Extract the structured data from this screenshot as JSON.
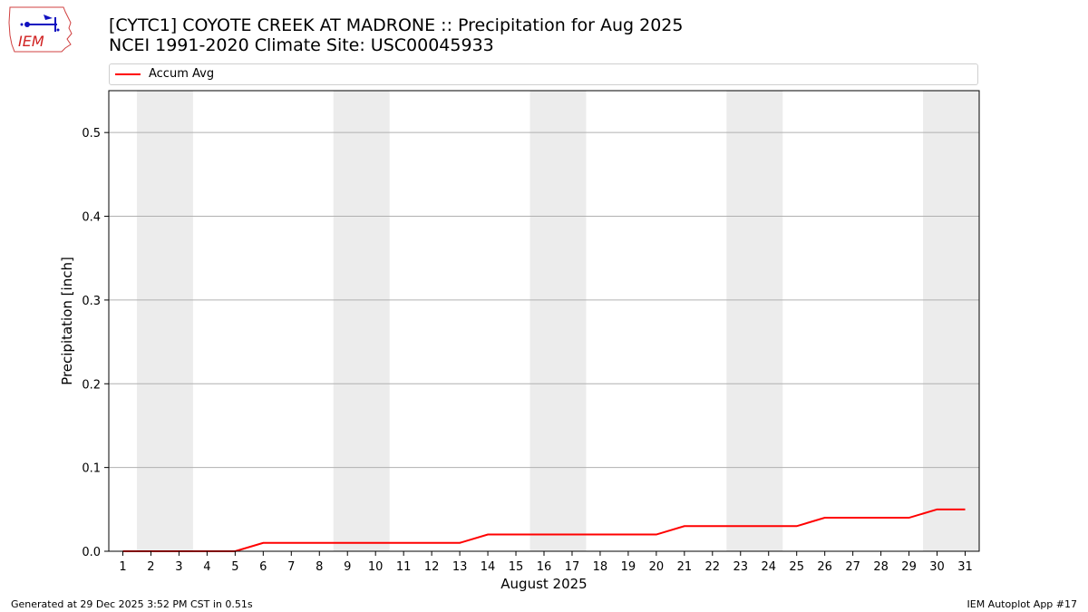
{
  "title_line1": "[CYTC1] COYOTE CREEK AT MADRONE :: Precipitation for Aug 2025",
  "title_line2": "NCEI 1991-2020 Climate Site: USC00045933",
  "logo_text": "IEM",
  "footer_left": "Generated at 29 Dec 2025 3:52 PM CST in 0.51s",
  "footer_right": "IEM Autoplot App #17",
  "colors": {
    "line": "#ff0000",
    "weekend_shade": "#ececec",
    "grid": "#b0b0b0"
  },
  "chart_data": {
    "type": "line",
    "xlabel": "August 2025",
    "ylabel": "Precipitation [inch]",
    "xlim": [
      0.5,
      31.5
    ],
    "ylim": [
      0,
      0.55
    ],
    "x": [
      1,
      2,
      3,
      4,
      5,
      6,
      7,
      8,
      9,
      10,
      11,
      12,
      13,
      14,
      15,
      16,
      17,
      18,
      19,
      20,
      21,
      22,
      23,
      24,
      25,
      26,
      27,
      28,
      29,
      30,
      31
    ],
    "xticklabels": [
      "1",
      "2",
      "3",
      "4",
      "5",
      "6",
      "7",
      "8",
      "9",
      "10",
      "11",
      "12",
      "13",
      "14",
      "15",
      "16",
      "17",
      "18",
      "19",
      "20",
      "21",
      "22",
      "23",
      "24",
      "25",
      "26",
      "27",
      "28",
      "29",
      "30",
      "31"
    ],
    "yticks": [
      0.0,
      0.1,
      0.2,
      0.3,
      0.4,
      0.5
    ],
    "yticklabels": [
      "0.0",
      "0.1",
      "0.2",
      "0.3",
      "0.4",
      "0.5"
    ],
    "grid": "horizontal",
    "shaded_days": [
      [
        2,
        3
      ],
      [
        9,
        10
      ],
      [
        16,
        17
      ],
      [
        23,
        24
      ],
      [
        30,
        31
      ]
    ],
    "series": [
      {
        "name": "Accum Avg",
        "values": [
          0,
          0,
          0,
          0,
          0,
          0.01,
          0.01,
          0.01,
          0.01,
          0.01,
          0.01,
          0.01,
          0.01,
          0.02,
          0.02,
          0.02,
          0.02,
          0.02,
          0.02,
          0.02,
          0.03,
          0.03,
          0.03,
          0.03,
          0.03,
          0.04,
          0.04,
          0.04,
          0.04,
          0.05,
          0.05
        ]
      }
    ],
    "legend": "top"
  }
}
